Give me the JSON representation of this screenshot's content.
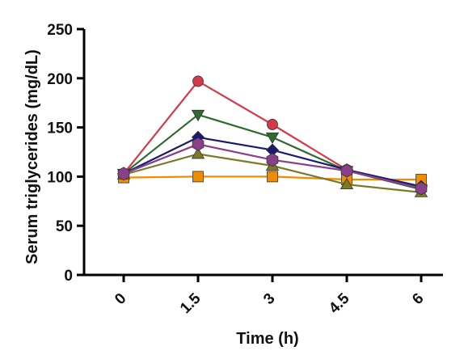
{
  "chart_data": {
    "type": "line",
    "xlabel": "Time (h)",
    "ylabel": "Serum triglycerides (mg/dL)",
    "x": [
      "0",
      "1.5",
      "3",
      "4.5",
      "6"
    ],
    "ylim": [
      0,
      250
    ],
    "yticks": [
      "0",
      "50",
      "100",
      "150",
      "200",
      "250"
    ],
    "grid": false,
    "legend": "none",
    "series": [
      {
        "color": "#f08c00",
        "marker": "square",
        "values": [
          99,
          100,
          100,
          97,
          97
        ]
      },
      {
        "color": "#d63a4a",
        "marker": "circle",
        "values": [
          103,
          197,
          153,
          107,
          88
        ]
      },
      {
        "color": "#2f6b2f",
        "marker": "triangle-down",
        "values": [
          103,
          163,
          140,
          106,
          87
        ]
      },
      {
        "color": "#1a1a70",
        "marker": "diamond",
        "values": [
          103,
          140,
          127,
          107,
          90
        ]
      },
      {
        "color": "#7a7a2a",
        "marker": "triangle-up",
        "values": [
          102,
          123,
          111,
          92,
          84
        ]
      },
      {
        "color": "#8a3f8a",
        "marker": "hexagon",
        "values": [
          103,
          133,
          117,
          106,
          88
        ]
      }
    ]
  }
}
